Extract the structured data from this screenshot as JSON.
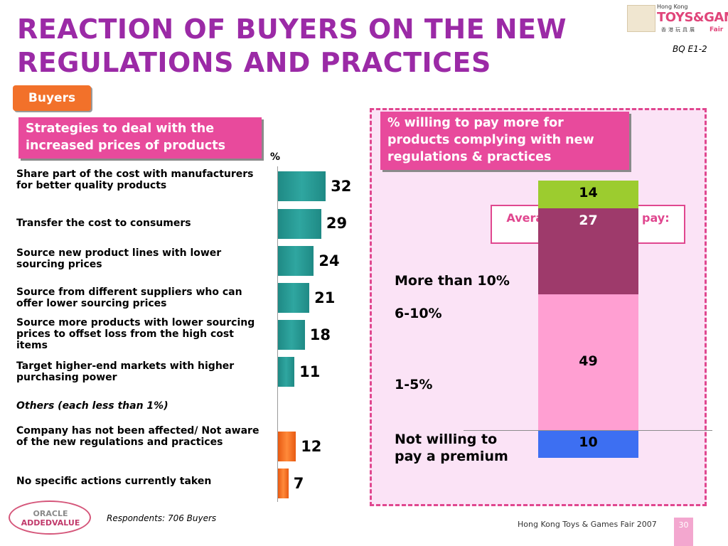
{
  "title": "REACTION OF BUYERS ON THE NEW REGULATIONS AND PRACTICES",
  "code": "BQ E1-2",
  "logo": {
    "hk": "Hong Kong",
    "brand": "TOYS&GAMES",
    "chinese": "香港玩具展",
    "fair": "Fair"
  },
  "segment_tab": "Buyers",
  "respondents": "Respondents: 706 Buyers",
  "oracle": {
    "line1": "ORACLE",
    "line2": "ADDEDVALUE"
  },
  "footer": "Hong Kong Toys & Games Fair 2007",
  "page_number": "30",
  "colors": {
    "title": "#9b2aa6",
    "pink": "#e84a9c",
    "teal": "#2a9a95",
    "orange": "#f26b22",
    "panel": "#fbe3f6"
  },
  "chart_data": [
    {
      "type": "bar",
      "title": "Strategies to deal with the increased prices of products",
      "unit": "%",
      "items": [
        {
          "label": "Share part of the cost with manufacturers for better quality products",
          "value": 32,
          "color": "teal"
        },
        {
          "label": "Transfer the cost to consumers",
          "value": 29,
          "color": "teal"
        },
        {
          "label": "Source new product lines with lower sourcing prices",
          "value": 24,
          "color": "teal"
        },
        {
          "label": "Source from different suppliers who can offer lower sourcing prices",
          "value": 21,
          "color": "teal"
        },
        {
          "label": "Source more products with lower sourcing prices to offset loss from the high cost items",
          "value": 18,
          "color": "teal"
        },
        {
          "label": "Target higher-end markets with higher purchasing power",
          "value": 11,
          "color": "teal"
        },
        {
          "label": "Others (each less than 1%)",
          "value": null,
          "color": "none"
        },
        {
          "label": "Company has not been affected/ Not aware of the new regulations and practices",
          "value": 12,
          "color": "orange"
        },
        {
          "label": "No specific actions currently taken",
          "value": 7,
          "color": "orange"
        }
      ]
    },
    {
      "type": "bar",
      "title": "% willing to pay more for products complying with new regulations & practices",
      "unit": "%",
      "annotation": "Average % willing to pay: 8.7%",
      "segments": [
        {
          "label": "More than 10%",
          "value": 14,
          "color": "#9ccc2f"
        },
        {
          "label": "6-10%",
          "value": 27,
          "color": "#9e3a6b"
        },
        {
          "label": "1-5%",
          "value": 49,
          "color": "#ff9fd2"
        },
        {
          "label": "Not willing to pay a premium",
          "value": 10,
          "color": "#3d6ff2"
        }
      ]
    }
  ]
}
